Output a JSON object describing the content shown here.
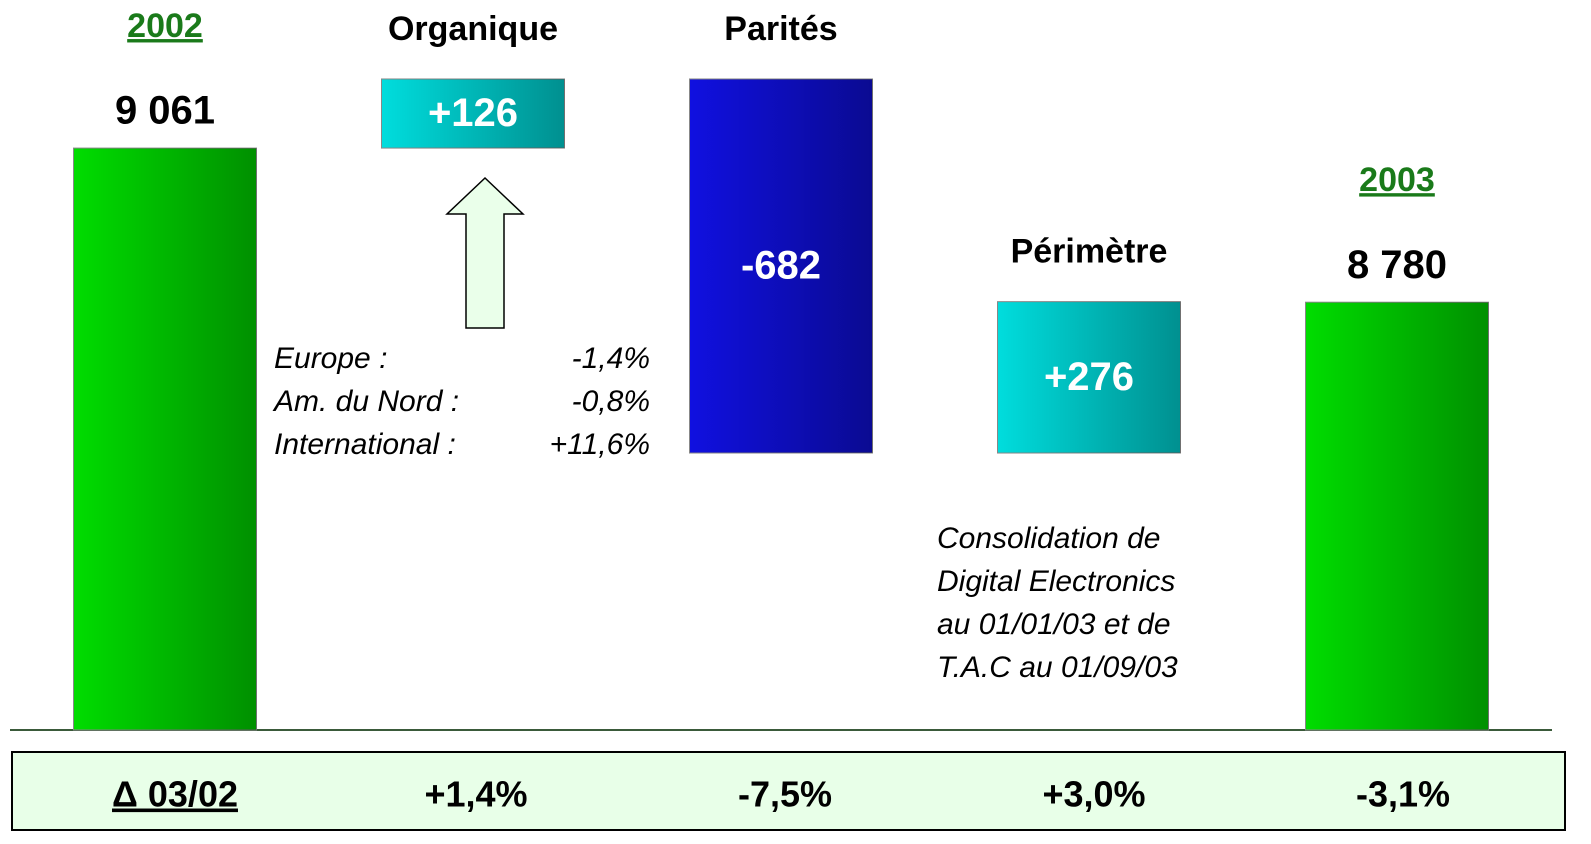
{
  "chart_data": {
    "type": "waterfall",
    "categories": [
      "2002",
      "Organique",
      "Parités",
      "Périmètre",
      "2003"
    ],
    "measure": [
      "absolute",
      "relative",
      "relative",
      "relative",
      "total"
    ],
    "values": [
      9061,
      126,
      -682,
      276,
      8780
    ],
    "value_labels": [
      "9 061",
      "+126",
      "-682",
      "+276",
      "8 780"
    ],
    "colors": [
      "#00dd00",
      "#00dddd",
      "#1010e0",
      "#00dddd",
      "#00dd00"
    ],
    "ylim": [
      8000,
      9300
    ],
    "annotations": {
      "organique": [
        {
          "label": "Europe :",
          "value": "-1,4%"
        },
        {
          "label": "Am. du Nord :",
          "value": "-0,8%"
        },
        {
          "label": "International :",
          "value": "+11,6%"
        }
      ],
      "perimetre": [
        "Consolidation de",
        "Digital Electronics",
        "au 01/01/03 et de",
        "T.A.C au 01/09/03"
      ]
    },
    "growth": {
      "label": "Δ 03/02",
      "values": [
        "+1,4%",
        "-7,5%",
        "+3,0%",
        "-3,1%"
      ]
    }
  }
}
